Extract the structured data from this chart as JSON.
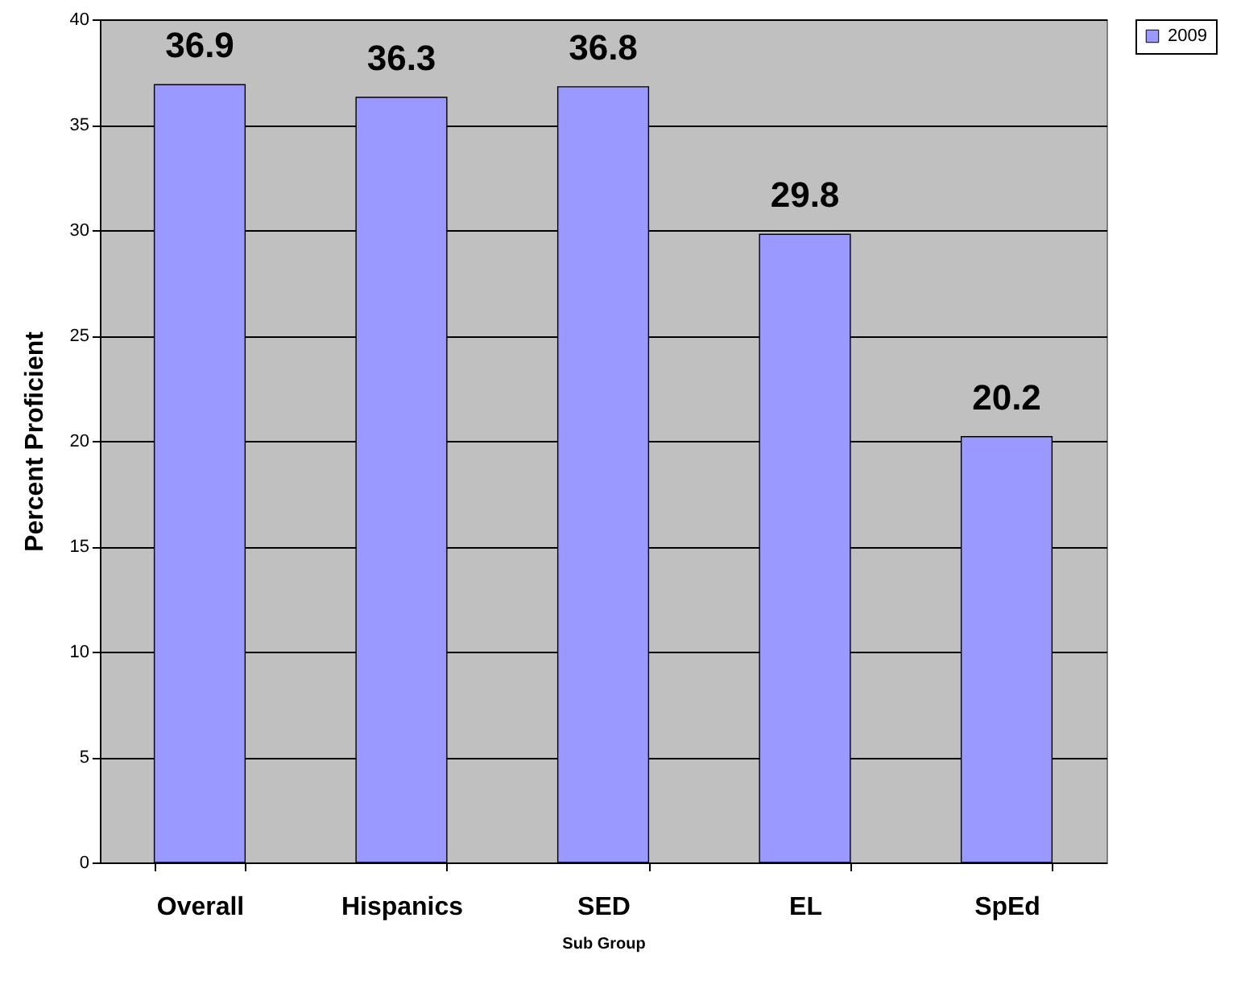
{
  "chart_data": {
    "type": "bar",
    "xlabel": "Sub Group",
    "ylabel": "Percent Proficient",
    "categories": [
      "Overall",
      "Hispanics",
      "SED",
      "EL",
      "SpEd"
    ],
    "series": [
      {
        "name": "2009",
        "color": "#9999ff",
        "values": [
          36.9,
          36.3,
          36.8,
          29.8,
          20.2
        ]
      }
    ],
    "ylim": [
      0,
      40
    ],
    "yticks": [
      0,
      5,
      10,
      15,
      20,
      25,
      30,
      35,
      40
    ],
    "grid": "y",
    "legend": "right",
    "data_labels": true
  }
}
